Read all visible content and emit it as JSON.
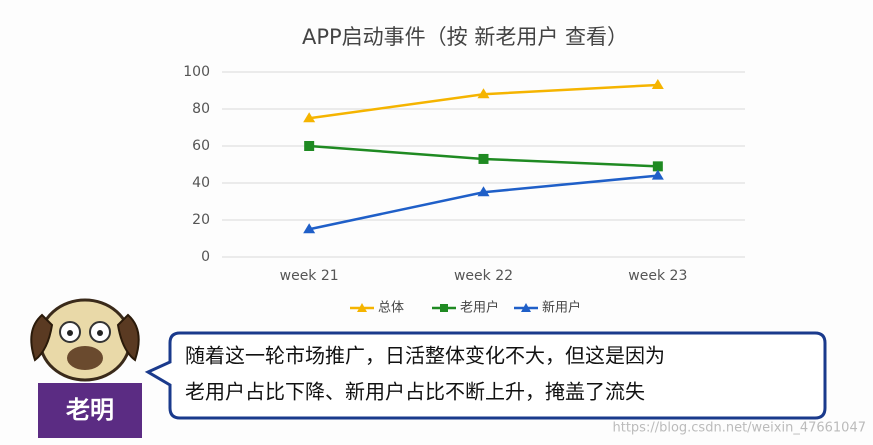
{
  "chart_data": {
    "type": "line",
    "title": "APP启动事件（按 新老用户 查看）",
    "categories": [
      "week 21",
      "week 22",
      "week 23"
    ],
    "series": [
      {
        "name": "总体",
        "color": "#f5b400",
        "marker": "triangle",
        "values": [
          75,
          88,
          93
        ]
      },
      {
        "name": "老用户",
        "color": "#1f8a22",
        "marker": "square",
        "values": [
          60,
          53,
          49
        ]
      },
      {
        "name": "新用户",
        "color": "#1f5fc8",
        "marker": "triangle",
        "values": [
          15,
          35,
          44
        ]
      }
    ],
    "ylim": [
      0,
      100
    ],
    "yticks": [
      0,
      20,
      40,
      60,
      80,
      100
    ],
    "grid": true,
    "legend": "bottom"
  },
  "caption": {
    "speaker": "老明",
    "lines": [
      "随着这一轮市场推广，日活整体变化不大，但这是因为",
      "老用户占比下降、新用户占比不断上升，掩盖了流失"
    ]
  },
  "watermark": "https://blog.csdn.net/weixin_47661047"
}
